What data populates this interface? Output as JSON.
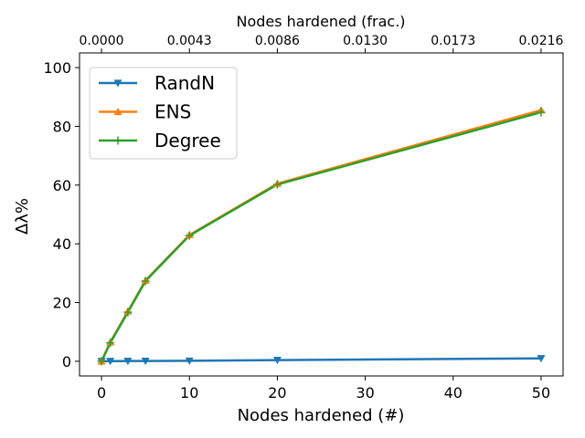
{
  "chart_data": {
    "type": "line",
    "xlabel": "Nodes hardened (#)",
    "ylabel": "Δλ%",
    "top_xlabel": "Nodes hardened (frac.)",
    "xlim": [
      -2.5,
      52.5
    ],
    "ylim": [
      -5,
      105
    ],
    "x_ticks": [
      0,
      10,
      20,
      30,
      40,
      50
    ],
    "x_tick_labels": [
      "0",
      "10",
      "20",
      "30",
      "40",
      "50"
    ],
    "y_ticks": [
      0,
      20,
      40,
      60,
      80,
      100
    ],
    "y_tick_labels": [
      "0",
      "20",
      "40",
      "60",
      "80",
      "100"
    ],
    "top_ticks": [
      0,
      10,
      20,
      30,
      40,
      50
    ],
    "top_tick_labels": [
      "0.0000",
      "0.0043",
      "0.0086",
      "0.0130",
      "0.0173",
      "0.0216"
    ],
    "legend_position": "upper-left",
    "series": [
      {
        "name": "RandN",
        "color": "#1f77b4",
        "marker": "triangle-down",
        "x": [
          0,
          1,
          3,
          5,
          10,
          20,
          50
        ],
        "values": [
          0,
          0.05,
          0.1,
          0.1,
          0.15,
          0.4,
          1.0
        ]
      },
      {
        "name": "ENS",
        "color": "#ff7f0e",
        "marker": "triangle-up",
        "x": [
          0,
          1,
          3,
          5,
          10,
          20,
          50
        ],
        "values": [
          0,
          6.5,
          17,
          27.5,
          43,
          60.5,
          85.5
        ]
      },
      {
        "name": "Degree",
        "color": "#2ca02c",
        "marker": "plus",
        "x": [
          0,
          1,
          3,
          5,
          10,
          20,
          50
        ],
        "values": [
          0,
          6.3,
          16.7,
          27.3,
          42.8,
          60.2,
          84.8
        ]
      }
    ]
  }
}
